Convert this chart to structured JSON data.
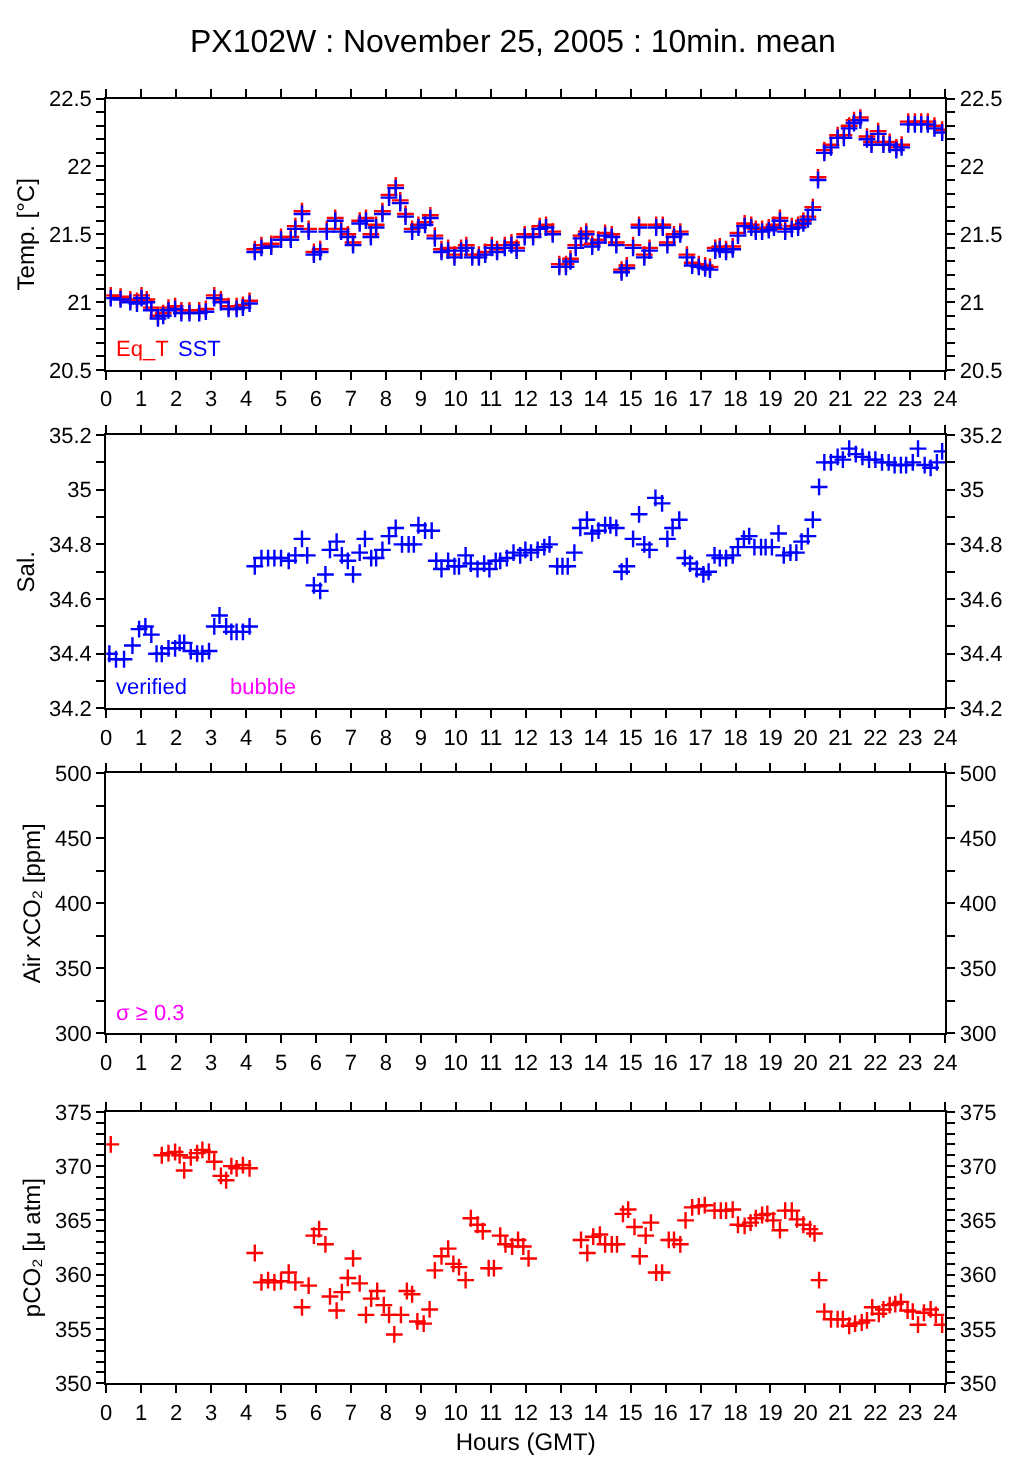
{
  "chart_data": [
    {
      "type": "scatter",
      "title": "PX102W : November 25, 2005 : 10min. mean",
      "ylabel": "Temp. [°C]",
      "marker": "cross",
      "legend": false,
      "xlim": [
        0,
        24
      ],
      "xticks": [
        0,
        1,
        2,
        3,
        4,
        5,
        6,
        7,
        8,
        9,
        10,
        11,
        12,
        13,
        14,
        15,
        16,
        17,
        18,
        19,
        20,
        21,
        22,
        23,
        24
      ],
      "ylim": [
        20.5,
        22.5
      ],
      "yticks": [
        20.5,
        {
          "value": 20.6,
          "label": null
        },
        {
          "value": 20.7,
          "label": null
        },
        {
          "value": 20.8,
          "label": null
        },
        {
          "value": 20.9,
          "label": null
        },
        21,
        {
          "value": 21.1,
          "label": null
        },
        {
          "value": 21.2,
          "label": null
        },
        {
          "value": 21.3,
          "label": null
        },
        {
          "value": 21.4,
          "label": null
        },
        21.5,
        {
          "value": 21.6,
          "label": null
        },
        {
          "value": 21.7,
          "label": null
        },
        {
          "value": 21.8,
          "label": null
        },
        {
          "value": 21.9,
          "label": null
        },
        22,
        {
          "value": 22.1,
          "label": null
        },
        {
          "value": 22.2,
          "label": null
        },
        {
          "value": 22.3,
          "label": null
        },
        {
          "value": 22.4,
          "label": null
        },
        22.5
      ],
      "y2lim": [
        20.5,
        22.5
      ],
      "y2ticks": [
        20.5,
        {
          "value": 20.6,
          "label": null
        },
        {
          "value": 20.7,
          "label": null
        },
        {
          "value": 20.8,
          "label": null
        },
        {
          "value": 20.9,
          "label": null
        },
        21,
        {
          "value": 21.1,
          "label": null
        },
        {
          "value": 21.2,
          "label": null
        },
        {
          "value": 21.3,
          "label": null
        },
        {
          "value": 21.4,
          "label": null
        },
        21.5,
        {
          "value": 21.6,
          "label": null
        },
        {
          "value": 21.7,
          "label": null
        },
        {
          "value": 21.8,
          "label": null
        },
        {
          "value": 21.9,
          "label": null
        },
        22,
        {
          "value": 22.1,
          "label": null
        },
        {
          "value": 22.2,
          "label": null
        },
        {
          "value": 22.3,
          "label": null
        },
        {
          "value": 22.4,
          "label": null
        },
        22.5
      ],
      "x": [
        0.13,
        0.41,
        0.69,
        0.88,
        1.01,
        1.16,
        1.29,
        1.48,
        1.63,
        1.78,
        1.97,
        2.15,
        2.38,
        2.66,
        2.85,
        3.09,
        3.28,
        3.5,
        3.73,
        3.91,
        4.1,
        4.25,
        4.44,
        4.72,
        5.0,
        5.28,
        5.41,
        5.6,
        5.79,
        5.94,
        6.12,
        6.31,
        6.55,
        6.72,
        6.91,
        7.06,
        7.25,
        7.43,
        7.57,
        7.72,
        7.9,
        8.09,
        8.28,
        8.41,
        8.56,
        8.75,
        8.93,
        9.12,
        9.27,
        9.4,
        9.59,
        9.78,
        9.96,
        10.15,
        10.3,
        10.47,
        10.66,
        10.84,
        11.03,
        11.18,
        11.4,
        11.59,
        11.74,
        11.97,
        12.21,
        12.4,
        12.58,
        12.77,
        12.96,
        13.15,
        13.28,
        13.43,
        13.58,
        13.73,
        13.9,
        14.08,
        14.27,
        14.46,
        14.59,
        14.74,
        14.89,
        15.07,
        15.24,
        15.39,
        15.54,
        15.73,
        15.92,
        16.05,
        16.24,
        16.42,
        16.61,
        16.76,
        16.95,
        17.13,
        17.27,
        17.42,
        17.55,
        17.73,
        17.92,
        18.07,
        18.26,
        18.45,
        18.58,
        18.76,
        18.95,
        19.1,
        19.27,
        19.42,
        19.61,
        19.79,
        19.94,
        20.07,
        20.21,
        20.36,
        20.54,
        20.73,
        20.92,
        21.1,
        21.25,
        21.39,
        21.57,
        21.76,
        21.89,
        22.08,
        22.23,
        22.41,
        22.6,
        22.75,
        22.94,
        23.13,
        23.31,
        23.5,
        23.69,
        23.91
      ],
      "series": [
        {
          "name": "Eq_T",
          "color": "#ff0000",
          "values": [
            21.05,
            21.04,
            21.02,
            21.01,
            21.05,
            21.02,
            20.96,
            20.9,
            20.92,
            20.96,
            20.97,
            20.94,
            20.94,
            20.94,
            20.95,
            21.05,
            21.02,
            20.97,
            20.97,
            20.98,
            21.01,
            21.39,
            21.42,
            21.43,
            21.48,
            21.48,
            21.56,
            21.67,
            21.54,
            21.37,
            21.39,
            21.54,
            21.62,
            21.54,
            21.5,
            21.44,
            21.6,
            21.62,
            21.5,
            21.57,
            21.67,
            21.79,
            21.86,
            21.75,
            21.65,
            21.54,
            21.57,
            21.59,
            21.64,
            21.49,
            21.39,
            21.4,
            21.35,
            21.4,
            21.42,
            21.35,
            21.35,
            21.37,
            21.42,
            21.39,
            21.42,
            21.44,
            21.4,
            21.5,
            21.5,
            21.56,
            21.57,
            21.52,
            21.28,
            21.28,
            21.32,
            21.42,
            21.49,
            21.52,
            21.43,
            21.46,
            21.51,
            21.5,
            21.44,
            21.24,
            21.27,
            21.42,
            21.57,
            21.35,
            21.4,
            21.57,
            21.57,
            21.44,
            21.5,
            21.52,
            21.35,
            21.29,
            21.28,
            21.27,
            21.26,
            21.4,
            21.41,
            21.39,
            21.41,
            21.51,
            21.58,
            21.57,
            21.54,
            21.54,
            21.55,
            21.57,
            21.62,
            21.54,
            21.56,
            21.57,
            21.6,
            21.63,
            21.7,
            21.92,
            22.12,
            22.16,
            22.23,
            22.23,
            22.3,
            22.34,
            22.36,
            22.22,
            22.18,
            22.26,
            22.18,
            22.18,
            22.14,
            22.16,
            22.33,
            22.33,
            22.33,
            22.33,
            22.3,
            22.27
          ]
        },
        {
          "name": "SST",
          "color": "#0000ff",
          "values": [
            21.03,
            21.02,
            21.0,
            20.99,
            21.03,
            21.0,
            20.94,
            20.88,
            20.9,
            20.94,
            20.95,
            20.92,
            20.92,
            20.92,
            20.93,
            21.03,
            21.0,
            20.95,
            20.95,
            20.96,
            20.99,
            21.37,
            21.4,
            21.41,
            21.46,
            21.46,
            21.54,
            21.65,
            21.52,
            21.35,
            21.37,
            21.52,
            21.6,
            21.52,
            21.48,
            21.42,
            21.58,
            21.6,
            21.48,
            21.55,
            21.65,
            21.77,
            21.84,
            21.73,
            21.63,
            21.52,
            21.55,
            21.57,
            21.62,
            21.47,
            21.37,
            21.38,
            21.33,
            21.38,
            21.4,
            21.33,
            21.33,
            21.35,
            21.4,
            21.37,
            21.4,
            21.42,
            21.38,
            21.48,
            21.48,
            21.54,
            21.55,
            21.5,
            21.26,
            21.26,
            21.3,
            21.4,
            21.47,
            21.5,
            21.41,
            21.44,
            21.49,
            21.48,
            21.42,
            21.22,
            21.25,
            21.4,
            21.55,
            21.33,
            21.38,
            21.55,
            21.55,
            21.42,
            21.48,
            21.5,
            21.33,
            21.27,
            21.26,
            21.25,
            21.24,
            21.38,
            21.39,
            21.37,
            21.39,
            21.49,
            21.56,
            21.55,
            21.52,
            21.52,
            21.53,
            21.55,
            21.6,
            21.52,
            21.54,
            21.55,
            21.58,
            21.61,
            21.68,
            21.9,
            22.1,
            22.14,
            22.21,
            22.21,
            22.28,
            22.32,
            22.34,
            22.2,
            22.16,
            22.24,
            22.16,
            22.16,
            22.12,
            22.14,
            22.31,
            22.31,
            22.31,
            22.31,
            22.28,
            22.25
          ]
        }
      ]
    },
    {
      "type": "scatter",
      "ylabel": "Sal.",
      "marker": "cross",
      "legend": false,
      "annotations": [
        "bubble"
      ],
      "xlim": [
        0,
        24
      ],
      "xticks": [
        0,
        1,
        2,
        3,
        4,
        5,
        6,
        7,
        8,
        9,
        10,
        11,
        12,
        13,
        14,
        15,
        16,
        17,
        18,
        19,
        20,
        21,
        22,
        23,
        24
      ],
      "ylim": [
        34.2,
        35.2
      ],
      "yticks": [
        34.2,
        {
          "value": 34.3,
          "label": null
        },
        34.4,
        {
          "value": 34.5,
          "label": null
        },
        34.6,
        {
          "value": 34.7,
          "label": null
        },
        34.8,
        {
          "value": 34.9,
          "label": null
        },
        35,
        {
          "value": 35.1,
          "label": null
        },
        35.2
      ],
      "y2lim": [
        34.2,
        35.2
      ],
      "y2ticks": [
        34.2,
        {
          "value": 34.3,
          "label": null
        },
        34.4,
        {
          "value": 34.5,
          "label": null
        },
        34.6,
        {
          "value": 34.7,
          "label": null
        },
        34.8,
        {
          "value": 34.9,
          "label": null
        },
        35,
        {
          "value": 35.1,
          "label": null
        },
        35.2
      ],
      "x": [
        0.09,
        0.28,
        0.51,
        0.75,
        0.94,
        1.12,
        1.29,
        1.44,
        1.59,
        1.78,
        1.97,
        2.1,
        2.23,
        2.42,
        2.6,
        2.75,
        2.94,
        3.09,
        3.24,
        3.43,
        3.58,
        3.73,
        3.91,
        4.1,
        4.25,
        4.44,
        4.63,
        4.81,
        5.0,
        5.22,
        5.41,
        5.6,
        5.75,
        5.94,
        6.12,
        6.27,
        6.4,
        6.59,
        6.74,
        6.91,
        7.06,
        7.25,
        7.4,
        7.58,
        7.72,
        7.9,
        8.09,
        8.28,
        8.46,
        8.65,
        8.8,
        8.93,
        9.12,
        9.31,
        9.44,
        9.59,
        9.78,
        9.96,
        10.09,
        10.28,
        10.43,
        10.62,
        10.81,
        10.96,
        11.14,
        11.27,
        11.46,
        11.65,
        11.84,
        11.99,
        12.15,
        12.34,
        12.53,
        12.68,
        12.9,
        13.05,
        13.2,
        13.39,
        13.56,
        13.75,
        13.9,
        14.08,
        14.27,
        14.42,
        14.59,
        14.74,
        14.89,
        15.07,
        15.24,
        15.39,
        15.54,
        15.71,
        15.9,
        16.05,
        16.2,
        16.39,
        16.55,
        16.7,
        16.89,
        17.08,
        17.23,
        17.4,
        17.55,
        17.73,
        17.92,
        18.07,
        18.24,
        18.39,
        18.54,
        18.73,
        18.86,
        19.04,
        19.23,
        19.38,
        19.57,
        19.74,
        19.89,
        20.07,
        20.21,
        20.39,
        20.54,
        20.73,
        20.92,
        21.07,
        21.25,
        21.44,
        21.63,
        21.82,
        22.0,
        22.19,
        22.38,
        22.55,
        22.73,
        22.88,
        23.07,
        23.22,
        23.41,
        23.58,
        23.76,
        23.91
      ],
      "series": [
        {
          "name": "verified",
          "color": "#0000ff",
          "values": [
            34.4,
            34.38,
            34.38,
            34.43,
            34.49,
            34.5,
            34.47,
            34.4,
            34.4,
            34.42,
            34.42,
            34.44,
            34.44,
            34.41,
            34.4,
            34.4,
            34.41,
            34.5,
            34.54,
            34.5,
            34.48,
            34.48,
            34.48,
            34.5,
            34.72,
            34.75,
            34.75,
            34.75,
            34.75,
            34.74,
            34.76,
            34.82,
            34.76,
            34.65,
            34.63,
            34.69,
            34.78,
            34.81,
            34.76,
            34.74,
            34.69,
            34.77,
            34.82,
            34.75,
            34.75,
            34.78,
            34.83,
            34.86,
            34.8,
            34.8,
            34.8,
            34.87,
            34.85,
            34.85,
            34.74,
            34.71,
            34.74,
            34.72,
            34.72,
            34.76,
            34.73,
            34.71,
            34.73,
            34.71,
            34.74,
            34.74,
            34.75,
            34.77,
            34.76,
            34.78,
            34.77,
            34.78,
            34.79,
            34.8,
            34.72,
            34.72,
            34.72,
            34.77,
            34.86,
            34.89,
            34.84,
            34.85,
            34.87,
            34.87,
            34.86,
            34.7,
            34.72,
            34.82,
            34.91,
            34.8,
            34.78,
            34.97,
            34.95,
            34.82,
            34.86,
            34.89,
            34.75,
            34.73,
            34.71,
            34.69,
            34.7,
            34.76,
            34.75,
            34.75,
            34.76,
            34.79,
            34.82,
            34.83,
            34.79,
            34.79,
            34.79,
            34.79,
            34.84,
            34.76,
            34.77,
            34.77,
            34.81,
            34.83,
            34.89,
            35.01,
            35.1,
            35.1,
            35.12,
            35.11,
            35.15,
            35.13,
            35.12,
            35.11,
            35.11,
            35.1,
            35.1,
            35.09,
            35.09,
            35.09,
            35.1,
            35.15,
            35.09,
            35.08,
            35.1,
            35.14
          ]
        }
      ]
    },
    {
      "type": "scatter",
      "ylabel": "Air xCO₂ [ppm]",
      "marker": "cross",
      "legend": false,
      "annotations": [
        "σ ≥ 0.3"
      ],
      "xlim": [
        0,
        24
      ],
      "xticks": [
        0,
        1,
        2,
        3,
        4,
        5,
        6,
        7,
        8,
        9,
        10,
        11,
        12,
        13,
        14,
        15,
        16,
        17,
        18,
        19,
        20,
        21,
        22,
        23,
        24
      ],
      "ylim": [
        300,
        500
      ],
      "yticks": [
        300,
        {
          "value": 325,
          "label": null
        },
        350,
        {
          "value": 375,
          "label": null
        },
        400,
        {
          "value": 425,
          "label": null
        },
        450,
        {
          "value": 475,
          "label": null
        },
        500
      ],
      "y2lim": [
        300,
        500
      ],
      "y2ticks": [
        300,
        {
          "value": 325,
          "label": null
        },
        350,
        {
          "value": 375,
          "label": null
        },
        400,
        {
          "value": 425,
          "label": null
        },
        450,
        {
          "value": 475,
          "label": null
        },
        500
      ],
      "tick_labels": true
    },
    {
      "type": "scatter",
      "ylabel": "pCO₂ [μ atm]",
      "xlabel": "Hours (GMT)",
      "marker": "cross",
      "legend": false,
      "xlim": [
        0,
        24
      ],
      "xticks": [
        0,
        1,
        2,
        3,
        4,
        5,
        6,
        7,
        8,
        9,
        10,
        11,
        12,
        13,
        14,
        15,
        16,
        17,
        18,
        19,
        20,
        21,
        22,
        23,
        24
      ],
      "ylim": [
        350,
        375
      ],
      "yticks": [
        350,
        {
          "value": 351,
          "label": null
        },
        {
          "value": 352,
          "label": null
        },
        {
          "value": 353,
          "label": null
        },
        {
          "value": 354,
          "label": null
        },
        355,
        {
          "value": 356,
          "label": null
        },
        {
          "value": 357,
          "label": null
        },
        {
          "value": 358,
          "label": null
        },
        {
          "value": 359,
          "label": null
        },
        360,
        {
          "value": 361,
          "label": null
        },
        {
          "value": 362,
          "label": null
        },
        {
          "value": 363,
          "label": null
        },
        {
          "value": 364,
          "label": null
        },
        365,
        {
          "value": 366,
          "label": null
        },
        {
          "value": 367,
          "label": null
        },
        {
          "value": 368,
          "label": null
        },
        {
          "value": 369,
          "label": null
        },
        370,
        {
          "value": 371,
          "label": null
        },
        {
          "value": 372,
          "label": null
        },
        {
          "value": 373,
          "label": null
        },
        {
          "value": 374,
          "label": null
        },
        375
      ],
      "y2lim": [
        350,
        375
      ],
      "y2ticks": [
        350,
        {
          "value": 351,
          "label": null
        },
        {
          "value": 352,
          "label": null
        },
        {
          "value": 353,
          "label": null
        },
        {
          "value": 354,
          "label": null
        },
        355,
        {
          "value": 356,
          "label": null
        },
        {
          "value": 357,
          "label": null
        },
        {
          "value": 358,
          "label": null
        },
        {
          "value": 359,
          "label": null
        },
        360,
        {
          "value": 361,
          "label": null
        },
        {
          "value": 362,
          "label": null
        },
        {
          "value": 363,
          "label": null
        },
        {
          "value": 364,
          "label": null
        },
        365,
        {
          "value": 366,
          "label": null
        },
        {
          "value": 367,
          "label": null
        },
        {
          "value": 368,
          "label": null
        },
        {
          "value": 369,
          "label": null
        },
        370,
        {
          "value": 371,
          "label": null
        },
        {
          "value": 372,
          "label": null
        },
        {
          "value": 373,
          "label": null
        },
        {
          "value": 374,
          "label": null
        },
        375
      ],
      "x": [
        0.13,
        1.59,
        1.78,
        1.97,
        2.1,
        2.23,
        2.42,
        2.6,
        2.75,
        2.94,
        3.09,
        3.28,
        3.43,
        3.58,
        3.73,
        3.91,
        4.1,
        4.25,
        4.44,
        4.63,
        4.81,
        5.0,
        5.22,
        5.41,
        5.6,
        5.79,
        5.94,
        6.09,
        6.27,
        6.4,
        6.59,
        6.74,
        6.91,
        7.06,
        7.25,
        7.43,
        7.58,
        7.75,
        7.94,
        8.09,
        8.24,
        8.43,
        8.6,
        8.75,
        8.9,
        9.08,
        9.25,
        9.4,
        9.59,
        9.78,
        9.93,
        10.09,
        10.28,
        10.43,
        10.62,
        10.77,
        10.94,
        11.09,
        11.27,
        11.42,
        11.61,
        11.78,
        11.93,
        12.08,
        13.58,
        13.76,
        13.93,
        14.12,
        14.27,
        14.46,
        14.61,
        14.78,
        14.93,
        15.11,
        15.26,
        15.43,
        15.58,
        15.73,
        15.9,
        16.09,
        16.24,
        16.42,
        16.57,
        16.76,
        16.95,
        17.12,
        17.4,
        17.58,
        17.73,
        17.92,
        18.07,
        18.26,
        18.43,
        18.58,
        18.76,
        18.91,
        19.08,
        19.27,
        19.42,
        19.61,
        19.76,
        19.94,
        20.13,
        20.26,
        20.39,
        20.54,
        20.73,
        20.92,
        21.07,
        21.25,
        21.42,
        21.61,
        21.76,
        21.91,
        22.1,
        22.23,
        22.41,
        22.57,
        22.73,
        22.92,
        23.07,
        23.22,
        23.39,
        23.58,
        23.73,
        23.91
      ],
      "series": [
        {
          "color": "#ff0000",
          "values": [
            372.0,
            371.0,
            371.2,
            371.3,
            371.0,
            369.6,
            370.8,
            371.2,
            371.5,
            371.3,
            370.4,
            369.1,
            368.7,
            370.0,
            369.8,
            370.1,
            369.8,
            362.0,
            359.3,
            359.5,
            359.3,
            359.4,
            360.2,
            359.3,
            357.0,
            359.0,
            363.6,
            364.2,
            362.8,
            358.0,
            356.7,
            358.4,
            359.7,
            361.5,
            359.2,
            356.3,
            357.8,
            358.5,
            357.2,
            356.3,
            354.5,
            356.3,
            358.5,
            358.2,
            355.7,
            355.5,
            356.8,
            360.4,
            361.7,
            362.4,
            361.0,
            360.7,
            359.5,
            365.2,
            364.6,
            364.0,
            360.6,
            360.6,
            363.6,
            362.8,
            362.6,
            363.2,
            362.6,
            361.5,
            363.2,
            362.0,
            363.5,
            363.7,
            362.8,
            362.8,
            362.8,
            365.6,
            366.0,
            364.4,
            361.7,
            363.6,
            364.8,
            360.2,
            360.2,
            363.2,
            363.2,
            362.8,
            365.0,
            366.2,
            366.3,
            366.4,
            365.9,
            365.9,
            365.9,
            366.0,
            364.6,
            364.5,
            364.8,
            365.2,
            365.5,
            365.6,
            365.0,
            364.1,
            365.9,
            365.9,
            365.1,
            364.6,
            364.2,
            363.8,
            359.5,
            356.6,
            355.9,
            355.9,
            355.9,
            355.3,
            355.5,
            355.6,
            355.8,
            357.0,
            356.4,
            356.8,
            357.2,
            357.3,
            357.5,
            356.7,
            356.6,
            355.4,
            356.5,
            356.8,
            356.3,
            355.4
          ]
        }
      ]
    }
  ]
}
